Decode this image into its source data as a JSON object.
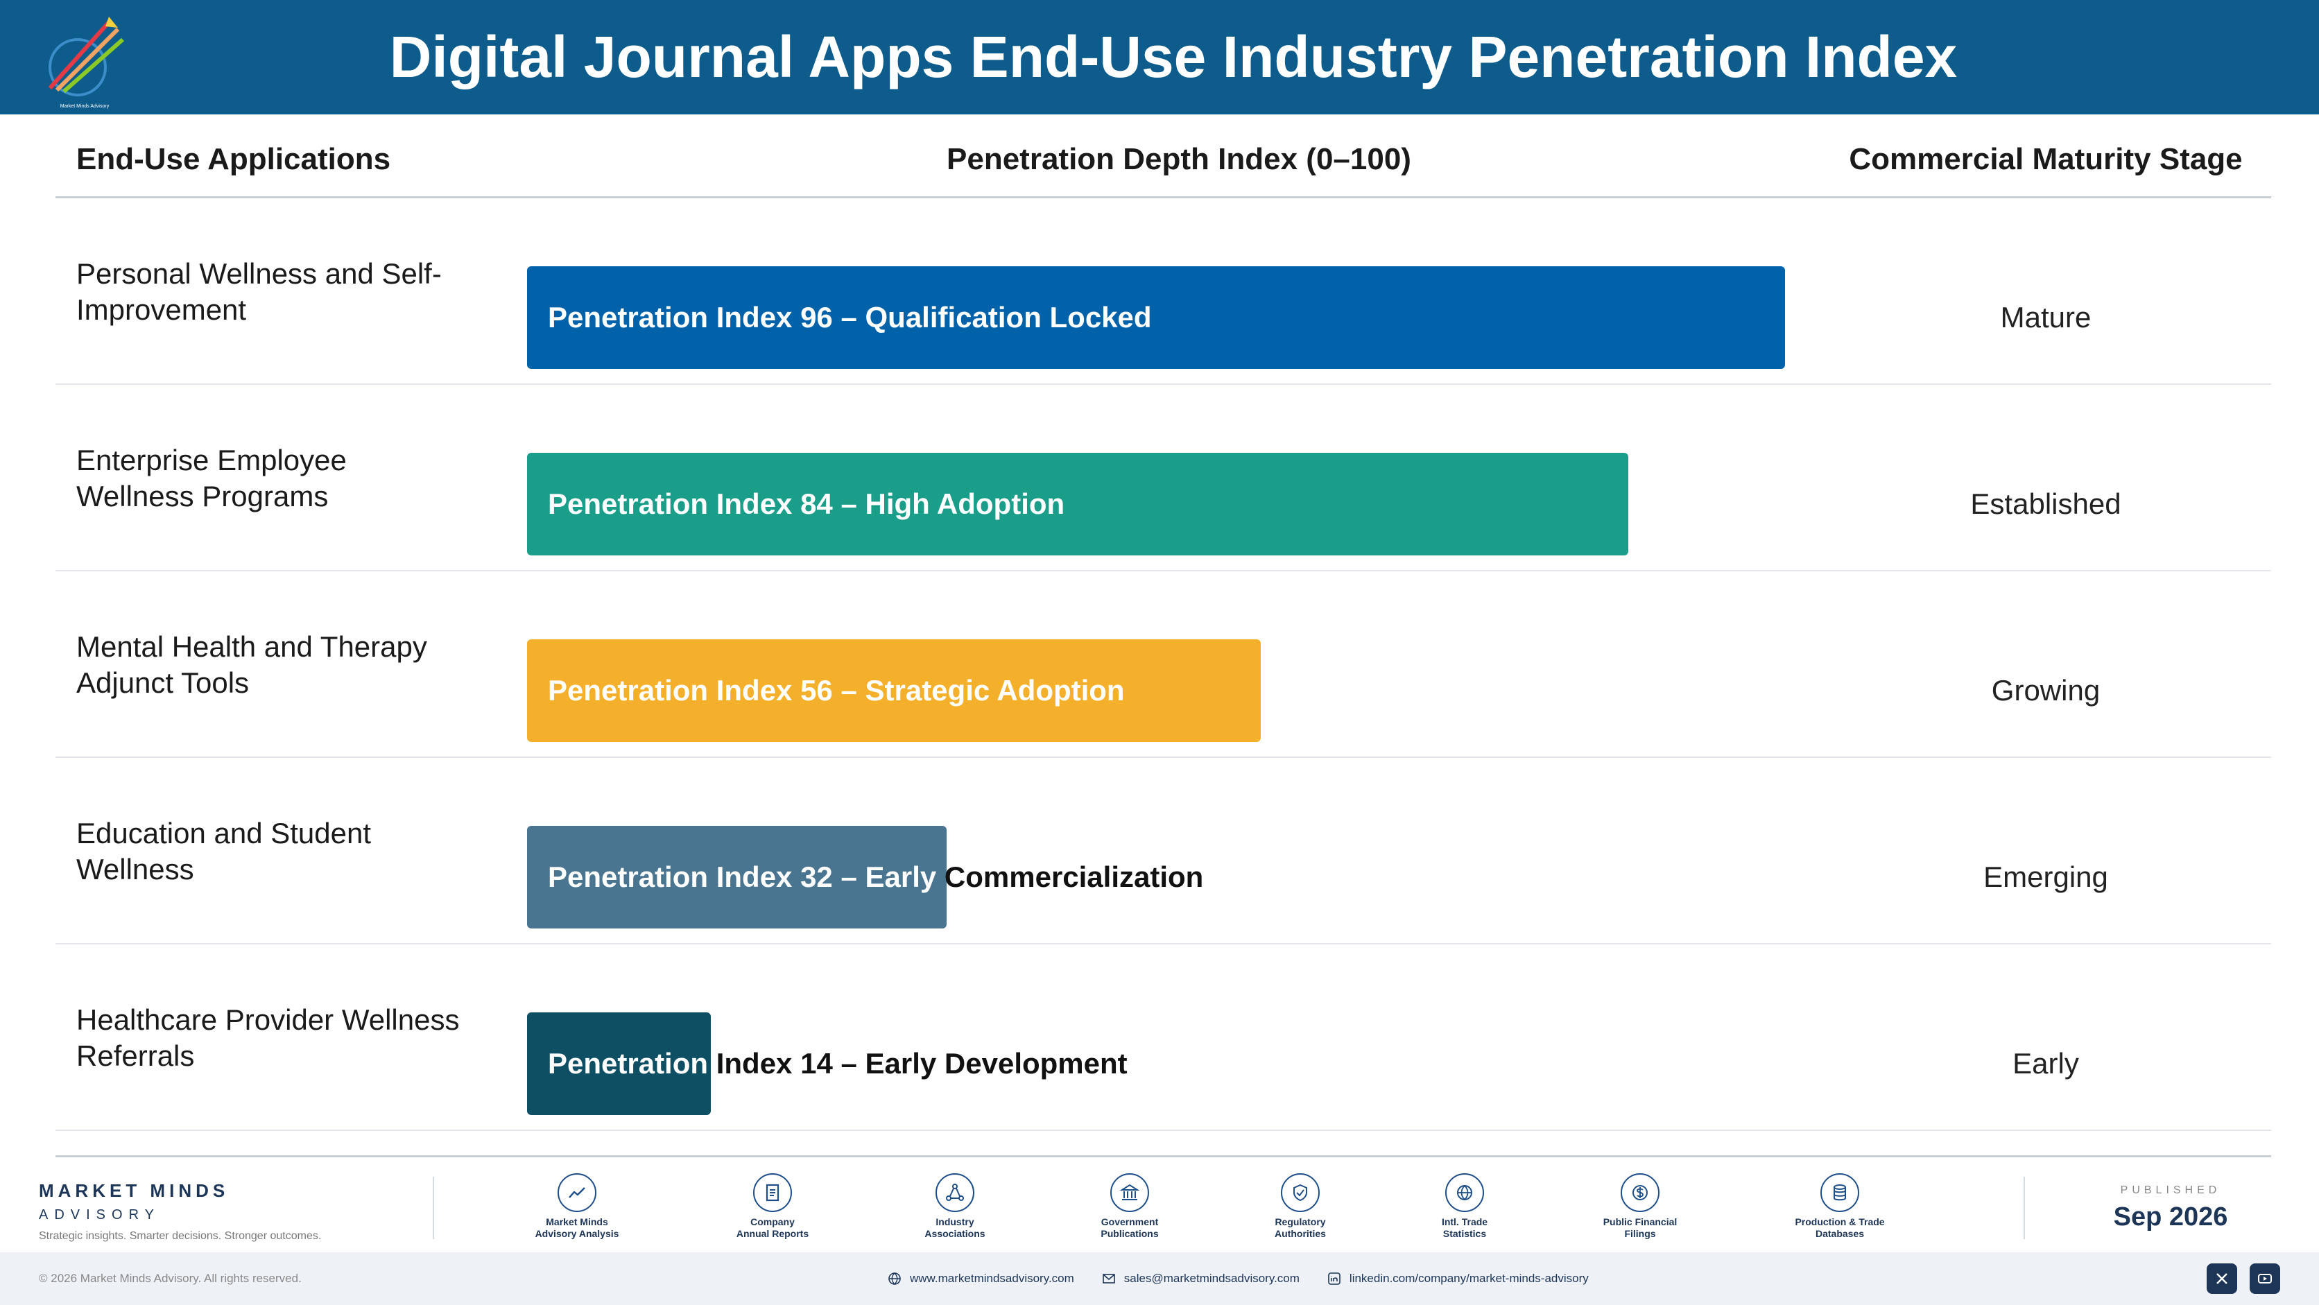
{
  "header": {
    "title": "Digital Journal Apps End-Use Industry Penetration Index",
    "logo_caption": "Market Minds Advisory"
  },
  "columns": {
    "applications": "End-Use Applications",
    "index": "Penetration Depth Index (0–100)",
    "stage": "Commercial Maturity Stage"
  },
  "chart_data": {
    "type": "bar",
    "orientation": "horizontal",
    "xlim": [
      0,
      100
    ],
    "categories": [
      "Personal Wellness and Self-Improvement",
      "Enterprise Employee Wellness Programs",
      "Mental Health and Therapy Adjunct Tools",
      "Education and Student Wellness",
      "Healthcare Provider Wellness Referrals"
    ],
    "values": [
      96,
      84,
      56,
      32,
      14
    ],
    "bar_labels": [
      "Penetration Index 96 – Qualification Locked",
      "Penetration Index 84 – High Adoption",
      "Penetration Index 56 – Strategic Adoption",
      "Penetration Index 32 – Early Commercialization",
      "Penetration Index 14 – Early Development"
    ],
    "stages": [
      "Mature",
      "Established",
      "Growing",
      "Emerging",
      "Early"
    ],
    "colors": [
      "#0162aa",
      "#1a9e8a",
      "#f5b02b",
      "#4a7590",
      "#0f4f63"
    ]
  },
  "footer": {
    "brand_name": "MARKET MINDS",
    "brand_sub": "ADVISORY",
    "tagline": "Strategic insights. Smarter decisions. Stronger outcomes.",
    "sources": [
      {
        "icon": "chart-line-icon",
        "label1": "Market Minds",
        "label2": "Advisory Analysis"
      },
      {
        "icon": "document-icon",
        "label1": "Company",
        "label2": "Annual Reports"
      },
      {
        "icon": "network-icon",
        "label1": "Industry",
        "label2": "Associations"
      },
      {
        "icon": "government-building-icon",
        "label1": "Government",
        "label2": "Publications"
      },
      {
        "icon": "shield-check-icon",
        "label1": "Regulatory",
        "label2": "Authorities"
      },
      {
        "icon": "globe-icon",
        "label1": "Intl. Trade",
        "label2": "Statistics"
      },
      {
        "icon": "dollar-coin-icon",
        "label1": "Public Financial",
        "label2": "Filings"
      },
      {
        "icon": "database-icon",
        "label1": "Production & Trade",
        "label2": "Databases"
      }
    ],
    "published_label": "PUBLISHED",
    "published_date": "Sep 2026",
    "copyright": "© 2026 Market Minds Advisory. All rights reserved.",
    "website": "www.marketmindsadvisory.com",
    "email": "sales@marketmindsadvisory.com",
    "linkedin": "linkedin.com/company/market-minds-advisory"
  }
}
